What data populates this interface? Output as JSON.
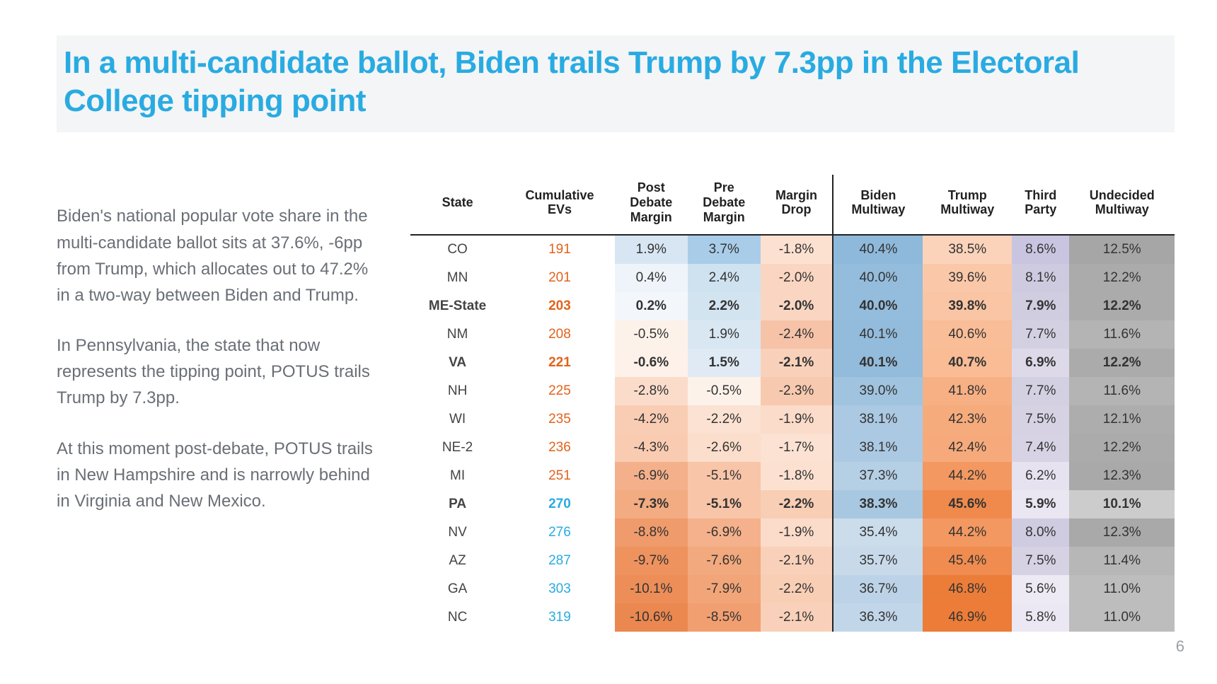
{
  "title_color": "#29abe2",
  "title_text": "In a multi-candidate ballot, Biden trails Trump by 7.3pp in the Electoral College tipping point",
  "commentary": [
    "Biden's national popular vote share in the multi-candidate ballot sits at 37.6%, -6pp from Trump, which allocates out to 47.2% in a two-way between Biden and Trump.",
    "In Pennsylvania, the state that now represents the tipping point, POTUS trails Trump by 7.3pp.",
    "At this moment post-debate, POTUS trails in New Hampshire and is narrowly behind in Virginia and New Mexico."
  ],
  "page_number": "6",
  "table": {
    "columns": [
      "State",
      "Cumulative EVs",
      "Post Debate Margin",
      "Pre Debate Margin",
      "Margin Drop",
      "Biden Multiway",
      "Trump Multiway",
      "Third Party",
      "Undecided Multiway"
    ],
    "orange_ev": "#e2621a",
    "blue_ev": "#29abe2",
    "rows": [
      {
        "state": "CO",
        "ev": "191",
        "ev_col": "o",
        "bold": false,
        "post": {
          "v": "1.9%",
          "bg": "#d7e6f2"
        },
        "pre": {
          "v": "3.7%",
          "bg": "#a9cde8"
        },
        "drop": {
          "v": "-1.8%",
          "bg": "#fce1d1"
        },
        "bm": {
          "v": "40.4%",
          "bg": "#8fb9da"
        },
        "tm": {
          "v": "38.5%",
          "bg": "#fbd3ba"
        },
        "tp": {
          "v": "8.6%",
          "bg": "#c9c5e0"
        },
        "um": {
          "v": "12.5%",
          "bg": "#a6a6a6"
        }
      },
      {
        "state": "MN",
        "ev": "201",
        "ev_col": "o",
        "bold": false,
        "post": {
          "v": "0.4%",
          "bg": "#eef4fa"
        },
        "pre": {
          "v": "2.4%",
          "bg": "#cfe2f0"
        },
        "drop": {
          "v": "-2.0%",
          "bg": "#fad6c2"
        },
        "bm": {
          "v": "40.0%",
          "bg": "#94bcdc"
        },
        "tm": {
          "v": "39.6%",
          "bg": "#fac8a8"
        },
        "tp": {
          "v": "8.1%",
          "bg": "#cecadf"
        },
        "um": {
          "v": "12.2%",
          "bg": "#ababab"
        }
      },
      {
        "state": "ME-State",
        "ev": "203",
        "ev_col": "o",
        "bold": true,
        "post": {
          "v": "0.2%",
          "bg": "#f3f7fb"
        },
        "pre": {
          "v": "2.2%",
          "bg": "#d3e4f1"
        },
        "drop": {
          "v": "-2.0%",
          "bg": "#fad6c2"
        },
        "bm": {
          "v": "40.0%",
          "bg": "#94bcdc"
        },
        "tm": {
          "v": "39.8%",
          "bg": "#fac5a4"
        },
        "tp": {
          "v": "7.9%",
          "bg": "#d0cde0"
        },
        "um": {
          "v": "12.2%",
          "bg": "#ababab"
        }
      },
      {
        "state": "NM",
        "ev": "208",
        "ev_col": "o",
        "bold": false,
        "post": {
          "v": "-0.5%",
          "bg": "#fdf2ea"
        },
        "pre": {
          "v": "1.9%",
          "bg": "#d9e7f2"
        },
        "drop": {
          "v": "-2.4%",
          "bg": "#f6c3a8"
        },
        "bm": {
          "v": "40.1%",
          "bg": "#93bbdb"
        },
        "tm": {
          "v": "40.6%",
          "bg": "#f9bd97"
        },
        "tp": {
          "v": "7.7%",
          "bg": "#d3d0e2"
        },
        "um": {
          "v": "11.6%",
          "bg": "#b4b4b4"
        }
      },
      {
        "state": "VA",
        "ev": "221",
        "ev_col": "o",
        "bold": true,
        "post": {
          "v": "-0.6%",
          "bg": "#fdf1e9"
        },
        "pre": {
          "v": "1.5%",
          "bg": "#dfeaf4"
        },
        "drop": {
          "v": "-2.1%",
          "bg": "#f9d1ba"
        },
        "bm": {
          "v": "40.1%",
          "bg": "#93bbdb"
        },
        "tm": {
          "v": "40.7%",
          "bg": "#f9bc95"
        },
        "tp": {
          "v": "6.9%",
          "bg": "#ddd9e9"
        },
        "um": {
          "v": "12.2%",
          "bg": "#ababab"
        }
      },
      {
        "state": "NH",
        "ev": "225",
        "ev_col": "o",
        "bold": false,
        "post": {
          "v": "-2.8%",
          "bg": "#fbdccb"
        },
        "pre": {
          "v": "-0.5%",
          "bg": "#fdf2ea"
        },
        "drop": {
          "v": "-2.3%",
          "bg": "#f7c9af"
        },
        "bm": {
          "v": "39.0%",
          "bg": "#a0c3df"
        },
        "tm": {
          "v": "41.8%",
          "bg": "#f7b084"
        },
        "tp": {
          "v": "7.7%",
          "bg": "#d3d0e2"
        },
        "um": {
          "v": "11.6%",
          "bg": "#b4b4b4"
        }
      },
      {
        "state": "WI",
        "ev": "235",
        "ev_col": "o",
        "bold": false,
        "post": {
          "v": "-4.2%",
          "bg": "#f9cdb4"
        },
        "pre": {
          "v": "-2.2%",
          "bg": "#fbe2d2"
        },
        "drop": {
          "v": "-1.9%",
          "bg": "#fbdbc9"
        },
        "bm": {
          "v": "38.1%",
          "bg": "#abc9e2"
        },
        "tm": {
          "v": "42.3%",
          "bg": "#f6ab7c"
        },
        "tp": {
          "v": "7.5%",
          "bg": "#d6d2e4"
        },
        "um": {
          "v": "12.1%",
          "bg": "#adadad"
        }
      },
      {
        "state": "NE-2",
        "ev": "236",
        "ev_col": "o",
        "bold": false,
        "post": {
          "v": "-4.3%",
          "bg": "#f9ccb2"
        },
        "pre": {
          "v": "-2.6%",
          "bg": "#fbdecb"
        },
        "drop": {
          "v": "-1.7%",
          "bg": "#fce2d2"
        },
        "bm": {
          "v": "38.1%",
          "bg": "#abc9e2"
        },
        "tm": {
          "v": "42.4%",
          "bg": "#f6aa7b"
        },
        "tp": {
          "v": "7.4%",
          "bg": "#d7d3e5"
        },
        "um": {
          "v": "12.2%",
          "bg": "#ababab"
        }
      },
      {
        "state": "MI",
        "ev": "251",
        "ev_col": "o",
        "bold": false,
        "post": {
          "v": "-6.9%",
          "bg": "#f4b08a"
        },
        "pre": {
          "v": "-5.1%",
          "bg": "#f8c5a8"
        },
        "drop": {
          "v": "-1.8%",
          "bg": "#fce1d1"
        },
        "bm": {
          "v": "37.3%",
          "bg": "#b5cfe5"
        },
        "tm": {
          "v": "44.2%",
          "bg": "#f39861"
        },
        "tp": {
          "v": "6.2%",
          "bg": "#e6e2ef"
        },
        "um": {
          "v": "12.3%",
          "bg": "#a9a9a9"
        }
      },
      {
        "state": "PA",
        "ev": "270",
        "ev_col": "b",
        "bold": true,
        "post": {
          "v": "-7.3%",
          "bg": "#f3ab82"
        },
        "pre": {
          "v": "-5.1%",
          "bg": "#f8c5a8"
        },
        "drop": {
          "v": "-2.2%",
          "bg": "#f8ceb5"
        },
        "bm": {
          "v": "38.3%",
          "bg": "#a8c8e1"
        },
        "tm": {
          "v": "45.6%",
          "bg": "#f08a4c"
        },
        "tp": {
          "v": "5.9%",
          "bg": "#eae6f2"
        },
        "um": {
          "v": "10.1%",
          "bg": "#cccccc"
        }
      },
      {
        "state": "NV",
        "ev": "276",
        "ev_col": "b",
        "bold": false,
        "post": {
          "v": "-8.8%",
          "bg": "#f09b6b"
        },
        "pre": {
          "v": "-6.9%",
          "bg": "#f4b18b"
        },
        "drop": {
          "v": "-1.9%",
          "bg": "#fbdbc9"
        },
        "bm": {
          "v": "35.4%",
          "bg": "#cbdceb"
        },
        "tm": {
          "v": "44.2%",
          "bg": "#f39861"
        },
        "tp": {
          "v": "8.0%",
          "bg": "#cfcbe0"
        },
        "um": {
          "v": "12.3%",
          "bg": "#a9a9a9"
        }
      },
      {
        "state": "AZ",
        "ev": "287",
        "ev_col": "b",
        "bold": false,
        "post": {
          "v": "-9.7%",
          "bg": "#ee925e"
        },
        "pre": {
          "v": "-7.6%",
          "bg": "#f2a97e"
        },
        "drop": {
          "v": "-2.1%",
          "bg": "#f9d1ba"
        },
        "bm": {
          "v": "35.7%",
          "bg": "#c8daea"
        },
        "tm": {
          "v": "45.4%",
          "bg": "#f08c4f"
        },
        "tp": {
          "v": "7.5%",
          "bg": "#d6d2e4"
        },
        "um": {
          "v": "11.4%",
          "bg": "#b7b7b7"
        }
      },
      {
        "state": "GA",
        "ev": "303",
        "ev_col": "b",
        "bold": false,
        "post": {
          "v": "-10.1%",
          "bg": "#ed8e58"
        },
        "pre": {
          "v": "-7.9%",
          "bg": "#f2a579"
        },
        "drop": {
          "v": "-2.2%",
          "bg": "#f8ceb5"
        },
        "bm": {
          "v": "36.7%",
          "bg": "#bcd3e7"
        },
        "tm": {
          "v": "46.8%",
          "bg": "#ec7d39"
        },
        "tp": {
          "v": "5.6%",
          "bg": "#edeaf4"
        },
        "um": {
          "v": "11.0%",
          "bg": "#bdbdbd"
        }
      },
      {
        "state": "NC",
        "ev": "319",
        "ev_col": "b",
        "bold": false,
        "post": {
          "v": "-10.6%",
          "bg": "#eb8850"
        },
        "pre": {
          "v": "-8.5%",
          "bg": "#f19f71"
        },
        "drop": {
          "v": "-2.1%",
          "bg": "#f9d1ba"
        },
        "bm": {
          "v": "36.3%",
          "bg": "#c1d6e8"
        },
        "tm": {
          "v": "46.9%",
          "bg": "#ec7c37"
        },
        "tp": {
          "v": "5.8%",
          "bg": "#ebe8f3"
        },
        "um": {
          "v": "11.0%",
          "bg": "#bdbdbd"
        }
      }
    ]
  }
}
